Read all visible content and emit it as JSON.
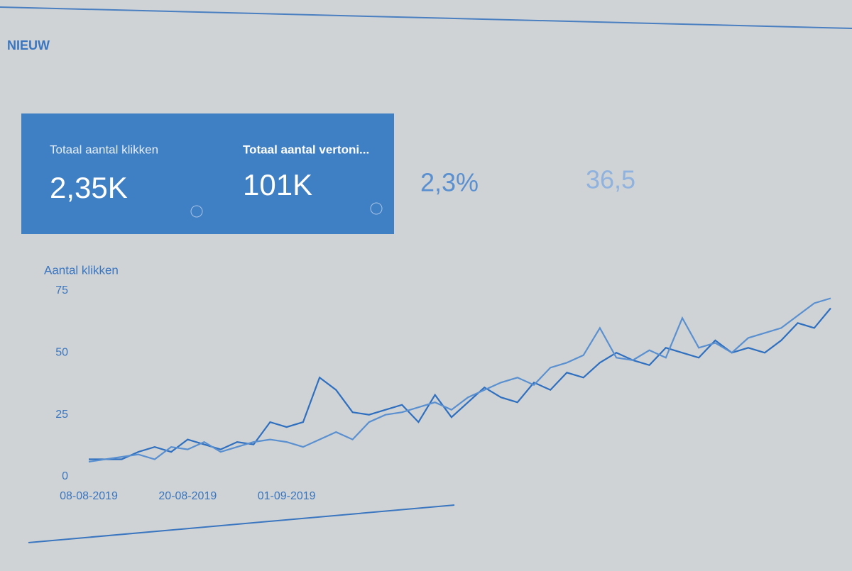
{
  "header": {
    "title": "NIEUW"
  },
  "metrics": [
    {
      "label": "Totaal aantal klikken",
      "value": "2,35K"
    },
    {
      "label": "Totaal aantal vertoni...",
      "value": "101K"
    },
    {
      "value": "2,3%"
    },
    {
      "value": "36,5"
    }
  ],
  "chart_data": {
    "type": "line",
    "y_label": "Aantal klikken",
    "categories": [
      "08-08-2019",
      null,
      null,
      null,
      null,
      null,
      "20-08-2019",
      null,
      null,
      null,
      null,
      null,
      "01-09-2019",
      null,
      null,
      null,
      null,
      null,
      null,
      null,
      null,
      null,
      null,
      null,
      null,
      null,
      null,
      null,
      null,
      null,
      null,
      null,
      null,
      null,
      null,
      null,
      null,
      null,
      null,
      null,
      null,
      null,
      null,
      null,
      null,
      null
    ],
    "series": [
      {
        "color": "#2f6fbf",
        "values": [
          7,
          7,
          7,
          10,
          12,
          10,
          15,
          13,
          11,
          14,
          13,
          22,
          20,
          22,
          40,
          35,
          26,
          25,
          27,
          29,
          22,
          33,
          24,
          30,
          36,
          32,
          30,
          38,
          35,
          42,
          40,
          46,
          50,
          47,
          45,
          52,
          50,
          48,
          55,
          50,
          52,
          50,
          55,
          62,
          60,
          68
        ]
      },
      {
        "color": "#5a90d0",
        "values": [
          6,
          7,
          8,
          9,
          7,
          12,
          11,
          14,
          10,
          12,
          14,
          15,
          14,
          12,
          15,
          18,
          15,
          22,
          25,
          26,
          28,
          30,
          27,
          32,
          35,
          38,
          40,
          37,
          44,
          46,
          49,
          60,
          48,
          47,
          51,
          48,
          64,
          52,
          54,
          50,
          56,
          58,
          60,
          65,
          70,
          72
        ]
      }
    ],
    "ylim": [
      0,
      75
    ],
    "yticks": [
      0,
      25,
      50,
      75
    ],
    "grid": false
  }
}
